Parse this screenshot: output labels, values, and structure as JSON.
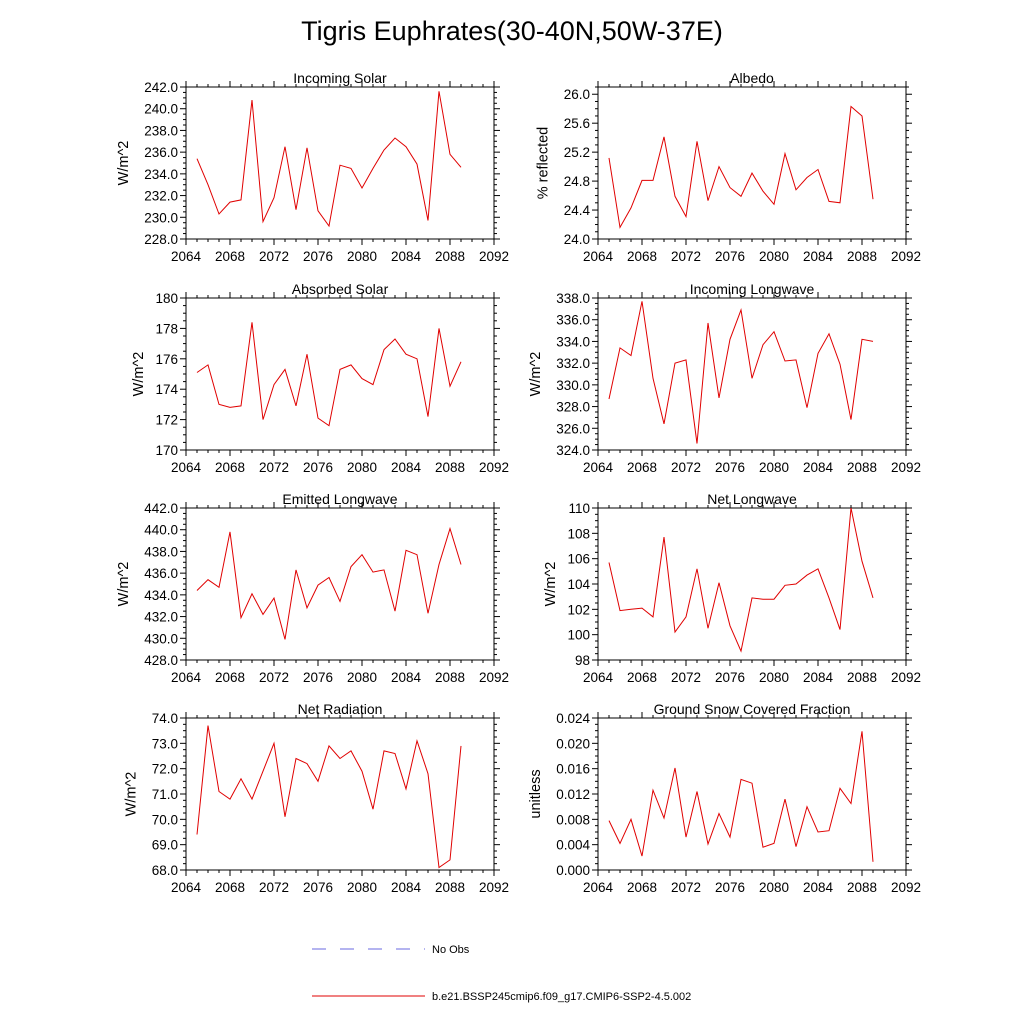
{
  "figure": {
    "title": "Tigris Euphrates(30-40N,50W-37E)",
    "legend": [
      {
        "label": "No Obs",
        "color": "#6a6ae0",
        "style": "dashed"
      },
      {
        "label": "b.e21.BSSP245cmip6.f09_g17.CMIP6-SSP2-4.5.002",
        "color": "#e00000",
        "style": "solid"
      }
    ]
  },
  "chart_data": [
    {
      "type": "line",
      "title": "Incoming Solar",
      "ylabel": "W/m^2",
      "xlim": [
        2064,
        2092
      ],
      "ylim": [
        228,
        242
      ],
      "xticks": [
        2064,
        2068,
        2072,
        2076,
        2080,
        2084,
        2088,
        2092
      ],
      "yticks": [
        "228.0",
        "230.0",
        "232.0",
        "234.0",
        "236.0",
        "238.0",
        "240.0",
        "242.0"
      ],
      "series": [
        {
          "color": "#e00000",
          "x": [
            2065,
            2066,
            2067,
            2068,
            2069,
            2070,
            2071,
            2072,
            2073,
            2074,
            2075,
            2076,
            2077,
            2078,
            2079,
            2080,
            2081,
            2082,
            2083,
            2084,
            2085,
            2086,
            2087,
            2088,
            2089
          ],
          "y": [
            235.4,
            233.0,
            230.3,
            231.4,
            231.6,
            240.8,
            229.6,
            231.8,
            236.5,
            230.7,
            236.4,
            230.6,
            229.2,
            234.8,
            234.5,
            232.7,
            234.5,
            236.2,
            237.3,
            236.5,
            234.9,
            229.7,
            241.6,
            235.8,
            234.6
          ]
        }
      ]
    },
    {
      "type": "line",
      "title": "Albedo",
      "ylabel": "% reflected",
      "xlim": [
        2064,
        2092
      ],
      "ylim": [
        24.0,
        26.1
      ],
      "xticks": [
        2064,
        2068,
        2072,
        2076,
        2080,
        2084,
        2088,
        2092
      ],
      "yticks": [
        "24.0",
        "24.4",
        "24.8",
        "25.2",
        "25.6",
        "26.0"
      ],
      "series": [
        {
          "color": "#e00000",
          "x": [
            2065,
            2066,
            2067,
            2068,
            2069,
            2070,
            2071,
            2072,
            2073,
            2074,
            2075,
            2076,
            2077,
            2078,
            2079,
            2080,
            2081,
            2082,
            2083,
            2084,
            2085,
            2086,
            2087,
            2088,
            2089
          ],
          "y": [
            25.12,
            24.16,
            24.43,
            24.81,
            24.81,
            25.41,
            24.59,
            24.31,
            25.35,
            24.53,
            25.0,
            24.71,
            24.59,
            24.91,
            24.66,
            24.48,
            25.18,
            24.68,
            24.85,
            24.96,
            24.52,
            24.5,
            25.83,
            25.7,
            24.55
          ]
        }
      ]
    },
    {
      "type": "line",
      "title": "Absorbed Solar",
      "ylabel": "W/m^2",
      "xlim": [
        2064,
        2092
      ],
      "ylim": [
        170,
        180
      ],
      "xticks": [
        2064,
        2068,
        2072,
        2076,
        2080,
        2084,
        2088,
        2092
      ],
      "yticks": [
        "170",
        "172",
        "174",
        "176",
        "178",
        "180"
      ],
      "series": [
        {
          "color": "#e00000",
          "x": [
            2065,
            2066,
            2067,
            2068,
            2069,
            2070,
            2071,
            2072,
            2073,
            2074,
            2075,
            2076,
            2077,
            2078,
            2079,
            2080,
            2081,
            2082,
            2083,
            2084,
            2085,
            2086,
            2087,
            2088,
            2089
          ],
          "y": [
            175.1,
            175.6,
            173.0,
            172.8,
            172.9,
            178.4,
            172.0,
            174.3,
            175.3,
            172.9,
            176.3,
            172.1,
            171.6,
            175.3,
            175.6,
            174.7,
            174.3,
            176.6,
            177.3,
            176.3,
            176.0,
            172.2,
            178.0,
            174.2,
            175.8
          ]
        }
      ]
    },
    {
      "type": "line",
      "title": "Incoming Longwave",
      "ylabel": "W/m^2",
      "xlim": [
        2064,
        2092
      ],
      "ylim": [
        324,
        338
      ],
      "xticks": [
        2064,
        2068,
        2072,
        2076,
        2080,
        2084,
        2088,
        2092
      ],
      "yticks": [
        "324.0",
        "326.0",
        "328.0",
        "330.0",
        "332.0",
        "334.0",
        "336.0",
        "338.0"
      ],
      "series": [
        {
          "color": "#e00000",
          "x": [
            2065,
            2066,
            2067,
            2068,
            2069,
            2070,
            2071,
            2072,
            2073,
            2074,
            2075,
            2076,
            2077,
            2078,
            2079,
            2080,
            2081,
            2082,
            2083,
            2084,
            2085,
            2086,
            2087,
            2088,
            2089
          ],
          "y": [
            328.7,
            333.4,
            332.7,
            337.7,
            330.6,
            326.4,
            332.0,
            332.3,
            324.6,
            335.7,
            328.8,
            334.2,
            336.9,
            330.6,
            333.7,
            334.9,
            332.2,
            332.3,
            327.9,
            332.9,
            334.7,
            331.9,
            326.8,
            334.2,
            334.0
          ]
        }
      ]
    },
    {
      "type": "line",
      "title": "Emitted Longwave",
      "ylabel": "W/m^2",
      "xlim": [
        2064,
        2092
      ],
      "ylim": [
        428,
        442
      ],
      "xticks": [
        2064,
        2068,
        2072,
        2076,
        2080,
        2084,
        2088,
        2092
      ],
      "yticks": [
        "428.0",
        "430.0",
        "432.0",
        "434.0",
        "436.0",
        "438.0",
        "440.0",
        "442.0"
      ],
      "series": [
        {
          "color": "#e00000",
          "x": [
            2065,
            2066,
            2067,
            2068,
            2069,
            2070,
            2071,
            2072,
            2073,
            2074,
            2075,
            2076,
            2077,
            2078,
            2079,
            2080,
            2081,
            2082,
            2083,
            2084,
            2085,
            2086,
            2087,
            2088,
            2089
          ],
          "y": [
            434.4,
            435.4,
            434.7,
            439.8,
            431.9,
            434.1,
            432.2,
            433.7,
            429.9,
            436.3,
            432.8,
            434.9,
            435.6,
            433.4,
            436.6,
            437.7,
            436.1,
            436.3,
            432.5,
            438.1,
            437.7,
            432.3,
            436.8,
            440.1,
            436.8
          ]
        }
      ]
    },
    {
      "type": "line",
      "title": "Net Longwave",
      "ylabel": "W/m^2",
      "xlim": [
        2064,
        2092
      ],
      "ylim": [
        98,
        110
      ],
      "xticks": [
        2064,
        2068,
        2072,
        2076,
        2080,
        2084,
        2088,
        2092
      ],
      "yticks": [
        "98",
        "100",
        "102",
        "104",
        "106",
        "108",
        "110"
      ],
      "series": [
        {
          "color": "#e00000",
          "x": [
            2065,
            2066,
            2067,
            2068,
            2069,
            2070,
            2071,
            2072,
            2073,
            2074,
            2075,
            2076,
            2077,
            2078,
            2079,
            2080,
            2081,
            2082,
            2083,
            2084,
            2085,
            2086,
            2087,
            2088,
            2089
          ],
          "y": [
            105.7,
            101.9,
            102.0,
            102.1,
            101.4,
            107.7,
            100.2,
            101.4,
            105.2,
            100.5,
            104.1,
            100.7,
            98.7,
            102.9,
            102.8,
            102.8,
            103.9,
            104.0,
            104.7,
            105.2,
            102.9,
            100.4,
            110.0,
            105.8,
            102.9
          ]
        }
      ]
    },
    {
      "type": "line",
      "title": "Net Radiation",
      "ylabel": "W/m^2",
      "xlim": [
        2064,
        2092
      ],
      "ylim": [
        68,
        74
      ],
      "xticks": [
        2064,
        2068,
        2072,
        2076,
        2080,
        2084,
        2088,
        2092
      ],
      "yticks": [
        "68.0",
        "69.0",
        "70.0",
        "71.0",
        "72.0",
        "73.0",
        "74.0"
      ],
      "series": [
        {
          "color": "#e00000",
          "x": [
            2065,
            2066,
            2067,
            2068,
            2069,
            2070,
            2071,
            2072,
            2073,
            2074,
            2075,
            2076,
            2077,
            2078,
            2079,
            2080,
            2081,
            2082,
            2083,
            2084,
            2085,
            2086,
            2087,
            2088,
            2089
          ],
          "y": [
            69.4,
            73.7,
            71.1,
            70.8,
            71.6,
            70.8,
            71.9,
            73.0,
            70.1,
            72.4,
            72.2,
            71.5,
            72.9,
            72.4,
            72.7,
            71.9,
            70.4,
            72.7,
            72.6,
            71.2,
            73.1,
            71.8,
            68.1,
            68.4,
            72.9
          ]
        }
      ]
    },
    {
      "type": "line",
      "title": "Ground Snow Covered Fraction",
      "ylabel": "unitless",
      "xlim": [
        2064,
        2092
      ],
      "ylim": [
        0,
        0.024
      ],
      "xticks": [
        2064,
        2068,
        2072,
        2076,
        2080,
        2084,
        2088,
        2092
      ],
      "yticks": [
        "0.000",
        "0.004",
        "0.008",
        "0.012",
        "0.016",
        "0.020",
        "0.024"
      ],
      "series": [
        {
          "color": "#e00000",
          "x": [
            2065,
            2066,
            2067,
            2068,
            2069,
            2070,
            2071,
            2072,
            2073,
            2074,
            2075,
            2076,
            2077,
            2078,
            2079,
            2080,
            2081,
            2082,
            2083,
            2084,
            2085,
            2086,
            2087,
            2088,
            2089
          ],
          "y": [
            0.0078,
            0.0042,
            0.008,
            0.0022,
            0.0126,
            0.0082,
            0.0161,
            0.0052,
            0.0124,
            0.0041,
            0.0089,
            0.0052,
            0.0143,
            0.0137,
            0.0036,
            0.0042,
            0.0112,
            0.0037,
            0.01,
            0.006,
            0.0062,
            0.0129,
            0.0105,
            0.0219,
            0.0013
          ]
        }
      ]
    }
  ]
}
